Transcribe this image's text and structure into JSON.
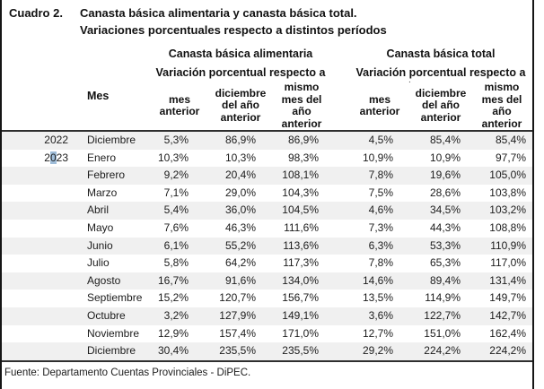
{
  "header": {
    "label": "Cuadro 2.",
    "title_line1": "Canasta básica alimentaria y canasta básica total.",
    "title_line2": "Variaciones porcentuales respecto a distintos períodos"
  },
  "table": {
    "month_header": "Mes",
    "groups": [
      {
        "title": "Canasta básica alimentaria",
        "subtitle": "Variación porcentual respecto a"
      },
      {
        "title": "Canasta básica total",
        "subtitle": "Variación porcentual respecto a"
      }
    ],
    "sub_columns": [
      "mes anterior",
      "diciembre del año anterior",
      "mismo mes del año anterior"
    ],
    "rows": [
      {
        "year": "2022",
        "month": "Diciembre",
        "cba": [
          "5,3%",
          "86,9%",
          "86,9%"
        ],
        "cbt": [
          "4,5%",
          "85,4%",
          "85,4%"
        ]
      },
      {
        "year": "2023",
        "year_selection": {
          "pre": "2",
          "sel": "0",
          "post": "23"
        },
        "month": "Enero",
        "cba": [
          "10,3%",
          "10,3%",
          "98,3%"
        ],
        "cbt": [
          "10,9%",
          "10,9%",
          "97,7%"
        ]
      },
      {
        "year": "",
        "month": "Febrero",
        "cba": [
          "9,2%",
          "20,4%",
          "108,1%"
        ],
        "cbt": [
          "7,8%",
          "19,6%",
          "105,0%"
        ]
      },
      {
        "year": "",
        "month": "Marzo",
        "cba": [
          "7,1%",
          "29,0%",
          "104,3%"
        ],
        "cbt": [
          "7,5%",
          "28,6%",
          "103,8%"
        ]
      },
      {
        "year": "",
        "month": "Abril",
        "cba": [
          "5,4%",
          "36,0%",
          "104,5%"
        ],
        "cbt": [
          "4,6%",
          "34,5%",
          "103,2%"
        ]
      },
      {
        "year": "",
        "month": "Mayo",
        "cba": [
          "7,6%",
          "46,3%",
          "111,6%"
        ],
        "cbt": [
          "7,3%",
          "44,3%",
          "108,8%"
        ]
      },
      {
        "year": "",
        "month": "Junio",
        "cba": [
          "6,1%",
          "55,2%",
          "113,6%"
        ],
        "cbt": [
          "6,3%",
          "53,3%",
          "110,9%"
        ]
      },
      {
        "year": "",
        "month": "Julio",
        "cba": [
          "5,8%",
          "64,2%",
          "117,3%"
        ],
        "cbt": [
          "7,8%",
          "65,3%",
          "117,0%"
        ]
      },
      {
        "year": "",
        "month": "Agosto",
        "cba": [
          "16,7%",
          "91,6%",
          "134,0%"
        ],
        "cbt": [
          "14,6%",
          "89,4%",
          "131,4%"
        ]
      },
      {
        "year": "",
        "month": "Septiembre",
        "cba": [
          "15,2%",
          "120,7%",
          "156,7%"
        ],
        "cbt": [
          "13,5%",
          "114,9%",
          "149,7%"
        ]
      },
      {
        "year": "",
        "month": "Octubre",
        "cba": [
          "3,2%",
          "127,9%",
          "149,1%"
        ],
        "cbt": [
          "3,6%",
          "122,7%",
          "142,7%"
        ]
      },
      {
        "year": "",
        "month": "Noviembre",
        "cba": [
          "12,9%",
          "157,4%",
          "171,0%"
        ],
        "cbt": [
          "12,7%",
          "151,0%",
          "162,4%"
        ]
      },
      {
        "year": "",
        "month": "Diciembre",
        "cba": [
          "30,4%",
          "235,5%",
          "235,5%"
        ],
        "cbt": [
          "29,2%",
          "224,2%",
          "224,2%"
        ]
      }
    ]
  },
  "footer": {
    "source": "Fuente: Departamento Cuentas Provinciales - DiPEC."
  },
  "stray_mark": ".",
  "colors": {
    "row_shade": "#f0f0f0",
    "selection_highlight": "#9fbdd9",
    "rule": "#2f2f2f",
    "frame_border": "#151515",
    "text": "#1c1c1c"
  }
}
